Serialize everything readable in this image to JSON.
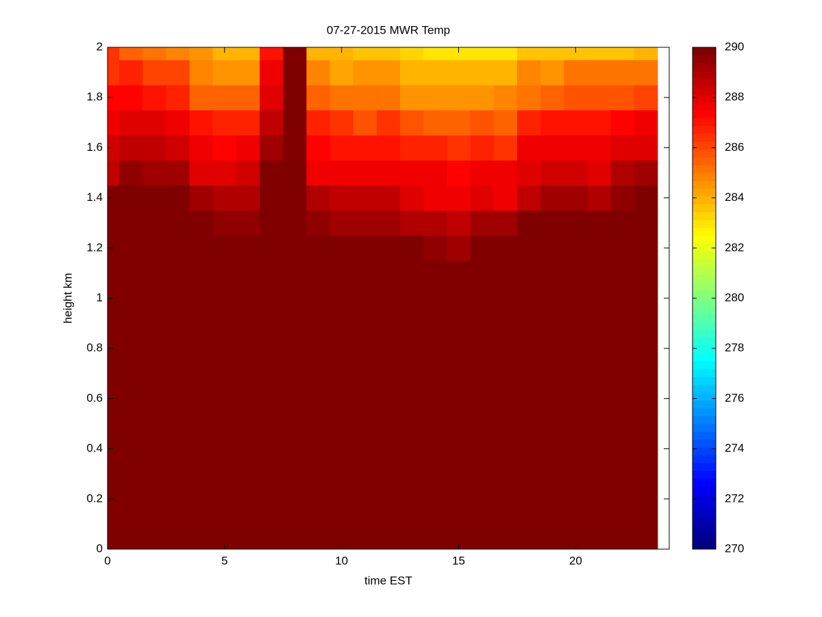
{
  "chart_data": {
    "type": "heatmap",
    "title": "07-27-2015 MWR Temp",
    "xlabel": "time EST",
    "ylabel": "height km",
    "colormap": "jet",
    "x": [
      0,
      1,
      2,
      3,
      4,
      5,
      6,
      7,
      8,
      9,
      10,
      11,
      12,
      13,
      14,
      15,
      16,
      17,
      18,
      19,
      20,
      21,
      22,
      23
    ],
    "y": [
      0,
      0.1,
      0.2,
      0.3,
      0.4,
      0.5,
      0.6,
      0.7,
      0.8,
      0.9,
      1,
      1.1,
      1.2,
      1.3,
      1.4,
      1.5,
      1.6,
      1.7,
      1.8,
      1.9,
      2
    ],
    "z": [
      [
        290,
        290,
        290,
        290,
        290,
        290,
        290,
        290,
        290,
        290,
        290,
        290,
        290,
        290,
        290,
        290,
        290,
        290,
        290,
        290,
        290,
        290,
        290,
        290
      ],
      [
        290,
        290,
        290,
        290,
        290,
        290,
        290,
        290,
        290,
        290,
        290,
        290,
        290,
        290,
        290,
        290,
        290,
        290,
        290,
        290,
        290,
        290,
        290,
        290
      ],
      [
        290,
        290,
        290,
        290,
        290,
        290,
        290,
        290,
        290,
        290,
        290,
        290,
        290,
        290,
        290,
        290,
        290,
        290,
        290,
        290,
        290,
        290,
        290,
        290
      ],
      [
        290,
        290,
        290,
        290,
        290,
        290,
        290,
        290,
        290,
        290,
        290,
        290,
        290,
        290,
        290,
        290,
        290,
        290,
        290,
        290,
        290,
        290,
        290,
        290
      ],
      [
        290,
        290,
        290,
        290,
        290,
        290,
        290,
        290,
        290,
        290,
        290,
        290,
        290,
        290,
        290,
        290,
        290,
        290,
        290,
        290,
        290,
        290,
        290,
        290
      ],
      [
        290,
        290,
        290,
        290,
        290,
        290,
        290,
        290,
        290,
        290,
        290,
        290,
        290,
        290,
        290,
        290,
        290,
        290,
        290,
        290,
        290,
        290,
        290,
        290
      ],
      [
        290,
        290,
        290,
        290,
        290,
        290,
        290,
        290,
        290,
        290,
        290,
        290,
        290,
        290,
        290,
        290,
        290,
        290,
        290,
        290,
        290,
        290,
        290,
        290
      ],
      [
        290,
        290,
        290,
        290,
        290,
        290,
        290,
        290,
        290,
        290,
        290,
        290,
        290,
        290,
        290,
        290,
        290,
        290,
        290,
        290,
        290,
        290,
        290,
        290
      ],
      [
        290,
        290,
        290,
        290,
        290,
        290,
        290,
        290,
        290,
        290,
        290,
        290,
        290,
        290,
        290,
        290,
        290,
        290,
        290,
        290,
        290,
        290,
        290,
        290
      ],
      [
        290,
        290,
        290,
        290,
        290,
        290,
        290,
        290,
        290,
        290,
        290,
        290,
        290,
        290,
        290,
        290,
        290,
        290,
        290,
        290,
        290,
        290,
        290,
        290
      ],
      [
        290,
        290,
        290,
        290,
        290,
        290,
        290,
        290,
        290,
        290,
        290,
        290,
        290,
        290,
        290,
        290,
        290,
        290,
        290,
        290,
        290,
        290,
        290,
        290
      ],
      [
        290,
        290,
        290,
        290,
        290,
        290,
        290,
        290,
        290,
        290,
        290,
        290,
        290,
        290,
        290,
        289.7,
        290,
        290,
        290,
        290,
        290,
        290,
        290,
        290
      ],
      [
        290,
        290,
        290,
        290,
        290,
        290,
        290,
        290,
        290,
        290,
        290,
        290,
        290,
        289.7,
        289.4,
        289.1,
        289.7,
        289.7,
        290,
        290,
        290,
        290,
        290,
        290
      ],
      [
        290,
        290,
        290,
        290,
        290,
        289.6,
        289.6,
        290,
        290,
        289.6,
        289.3,
        289.3,
        289.3,
        289,
        289,
        288.7,
        289.3,
        289.3,
        289.7,
        290,
        290,
        289.7,
        290,
        290
      ],
      [
        290,
        290,
        290,
        290,
        289.3,
        289,
        289,
        290,
        290,
        289,
        288.7,
        288.7,
        288.7,
        288.1,
        287.8,
        287.5,
        288.1,
        287.8,
        288.7,
        289.3,
        289.3,
        289,
        289.6,
        290
      ],
      [
        288.7,
        289.6,
        289.3,
        289.3,
        288.1,
        288,
        288.4,
        290,
        290,
        287.5,
        287.8,
        287.8,
        287.8,
        287.5,
        287.5,
        287.2,
        287.5,
        287.5,
        288.1,
        288.4,
        288.4,
        288.1,
        289,
        289.3
      ],
      [
        288.4,
        288.7,
        288.7,
        288.4,
        287.5,
        287.2,
        287.5,
        289.3,
        290,
        287.2,
        286.9,
        286.9,
        286.9,
        286.6,
        286.6,
        286.3,
        286.6,
        286.3,
        287.5,
        287.8,
        287.8,
        287.5,
        288.1,
        288.1
      ],
      [
        287.8,
        288,
        288,
        287.8,
        286.9,
        286.6,
        286.6,
        288.7,
        290,
        286.6,
        286.3,
        285.9,
        286.3,
        285.9,
        285.6,
        285.6,
        285.9,
        285.6,
        286.6,
        286.9,
        286.9,
        286.9,
        287.2,
        287.5
      ],
      [
        287.2,
        287.2,
        287,
        286.6,
        285.6,
        285.6,
        285.6,
        288,
        290,
        285.6,
        285.3,
        285,
        285.3,
        284.4,
        284.4,
        284.4,
        284.4,
        284.7,
        285.3,
        285.6,
        285.9,
        285.9,
        285.9,
        286.2
      ],
      [
        286.5,
        286.6,
        286.2,
        286,
        284.7,
        284.4,
        284.4,
        287.5,
        290,
        284.7,
        284.1,
        284.4,
        284.4,
        284,
        284,
        284,
        284,
        283.8,
        284.7,
        284.6,
        285,
        285,
        285,
        285.3
      ],
      [
        286.3,
        285.6,
        285.3,
        284.7,
        284.4,
        284,
        284,
        287,
        290,
        284,
        283.8,
        283.5,
        283.5,
        283.4,
        283,
        283,
        283,
        283.1,
        283.7,
        283.7,
        283.7,
        283.7,
        283.7,
        284
      ]
    ],
    "xlim": [
      0,
      24
    ],
    "xticks": [
      0,
      5,
      10,
      15,
      20
    ],
    "ylim": [
      0,
      2
    ],
    "yticks": [
      0,
      0.2,
      0.4,
      0.6,
      0.8,
      1,
      1.2,
      1.4,
      1.6,
      1.8,
      2
    ],
    "clim": [
      270,
      290
    ],
    "cticks": [
      270,
      272,
      274,
      276,
      278,
      280,
      282,
      284,
      286,
      288,
      290
    ]
  }
}
